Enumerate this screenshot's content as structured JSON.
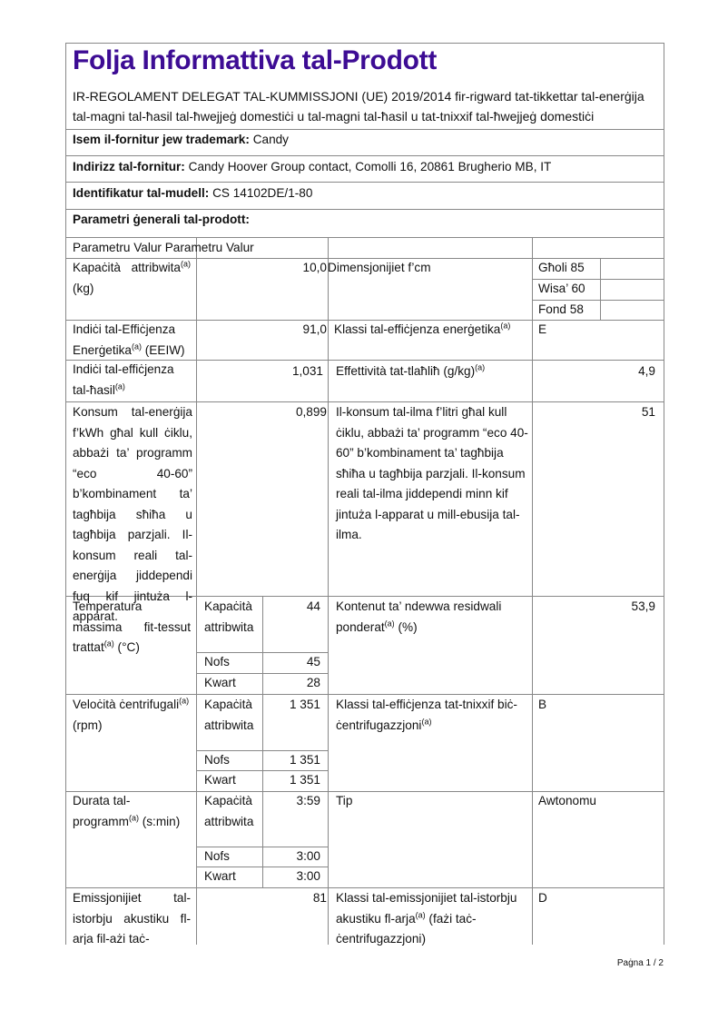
{
  "title": "Folja Informattiva tal-Prodott",
  "regulation": "IR-REGOLAMENT DELEGAT TAL-KUMMISSJONI (UE) 2019/2014 fir-rigward tat-tikkettar tal-enerġija tal-magni tal-ħasil tal-ħwejjeġ domestiċi u tal-magni tal-ħasil u tat-tnixxif tal-ħwejjeġ domestiċi",
  "supplier": {
    "label": "Isem il-fornitur jew trademark:",
    "value": "Candy"
  },
  "address": {
    "label": "Indirizz tal-fornitur:",
    "value": "Candy Hoover Group contact, Comolli 16, 20861 Brugherio MB, IT"
  },
  "model": {
    "label": "Identifikatur tal-mudell:",
    "value": "CS 14102DE/1-80"
  },
  "general": {
    "label": "Parametri ġenerali tal-prodott:"
  },
  "table": {
    "header": "Parametru Valur Parametru Valur",
    "capacity": {
      "label": "Kapaċità attribwita",
      "sup": "(a)",
      "unit": "(kg)",
      "value": "10,0",
      "p2": "Dimensjonijiet f’cm",
      "dims": [
        "Għoli 85",
        "Wisa’ 60",
        "Fond 58"
      ]
    },
    "eei": {
      "label": "Indiċi tal-Effiċjenza Enerġetika",
      "sup": "(a)",
      "unit": "(EEIW)",
      "value": "91,0",
      "p2": "Klassi tal-effiċjenza enerġetika",
      "p2sup": "(a)",
      "v2": "E"
    },
    "washing": {
      "label": "Indiċi tal-effiċjenza tal-ħasil",
      "sup": "(a)",
      "value": "1,031",
      "p2": "Effettività tat-tlaħliħ (g/kg)",
      "p2sup": "(a)",
      "v2": "4,9"
    },
    "energy": {
      "label": "Konsum tal-enerġija f’kWh għal kull ċiklu, abbażi ta’ programm “eco 40-60” b’kombinament ta’ tagħbija sħiħa u tagħbija parzjali. Il-konsum reali tal-enerġija jiddependi fuq kif jintuża l-apparat.",
      "value": "0,899",
      "p2": "Il-konsum tal-ilma f’litri għal kull ċiklu, abbażi ta’ programm “eco 40-60” b’kombinament ta’ tagħbija sħiħa u tagħbija parzjali. Il-konsum reali tal-ilma jiddependi minn kif jintuża l-apparat u mill-ebusija tal-ilma.",
      "v2": "51"
    },
    "temperature": {
      "label": "Temperatura massima fit-tessut trattat",
      "sup": "(a)",
      "unit": "(°C)",
      "subs": [
        {
          "l": "Kapaċità attribwita",
          "v": "44"
        },
        {
          "l": "Nofs",
          "v": "45"
        },
        {
          "l": "Kwart",
          "v": "28"
        }
      ],
      "p2": "Kontenut ta’ ndewwa residwali ponderat",
      "p2sup": "(a)",
      "p2unit": "(%)",
      "v2": "53,9"
    },
    "spin": {
      "label": "Veloċità ċentrifugali",
      "sup": "(a)",
      "unit": "(rpm)",
      "subs": [
        {
          "l": "Kapaċità attribwita",
          "v": "1 351"
        },
        {
          "l": "Nofs",
          "v": "1 351"
        },
        {
          "l": "Kwart",
          "v": "1 351"
        }
      ],
      "p2": "Klassi tal-effiċjenza tat-tnixxif biċ-ċentrifugazzjoni",
      "p2sup": "(a)",
      "v2": "B"
    },
    "duration": {
      "label": "Durata tal-programm",
      "sup": "(a)",
      "unit": "(s:min)",
      "subs": [
        {
          "l": "Kapaċità attribwita",
          "v": "3:59"
        },
        {
          "l": "Nofs",
          "v": "3:00"
        },
        {
          "l": "Kwart",
          "v": "3:00"
        }
      ],
      "p2": "Tip",
      "v2": "Awtonomu"
    },
    "noise": {
      "label": "Emissjonijiet tal-istorbju akustiku fl-arja fil-ażi taċ-",
      "value": "81",
      "p2": "Klassi tal-emissjonijiet tal-istorbju akustiku fl-arja",
      "p2sup": "(a)",
      "p2unit": "(fażi taċ-ċentrifugazzjoni)",
      "v2": "D"
    }
  },
  "footer": {
    "page": "Paġna 1 / 2"
  }
}
